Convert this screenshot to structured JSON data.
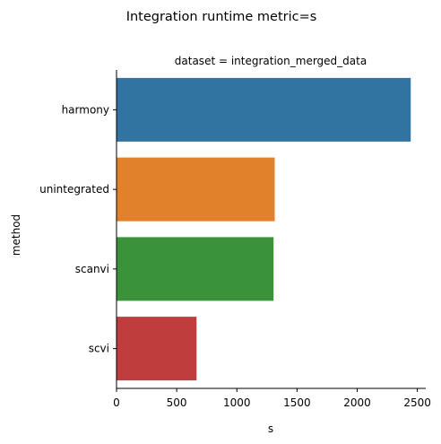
{
  "chart_data": {
    "type": "bar",
    "orientation": "horizontal",
    "title": "Integration runtime metric=s",
    "subtitle": "dataset = integration_merged_data",
    "xlabel": "s",
    "ylabel": "method",
    "categories": [
      "harmony",
      "unintegrated",
      "scanvi",
      "scvi"
    ],
    "values": [
      2445,
      1315,
      1305,
      665
    ],
    "colors": [
      "#3274a1",
      "#e1812c",
      "#3a923a",
      "#c03d3e"
    ],
    "xlim": [
      0,
      2570
    ],
    "xticks": [
      0,
      500,
      1000,
      1500,
      2000,
      2500
    ],
    "grid": false,
    "legend": "none"
  }
}
